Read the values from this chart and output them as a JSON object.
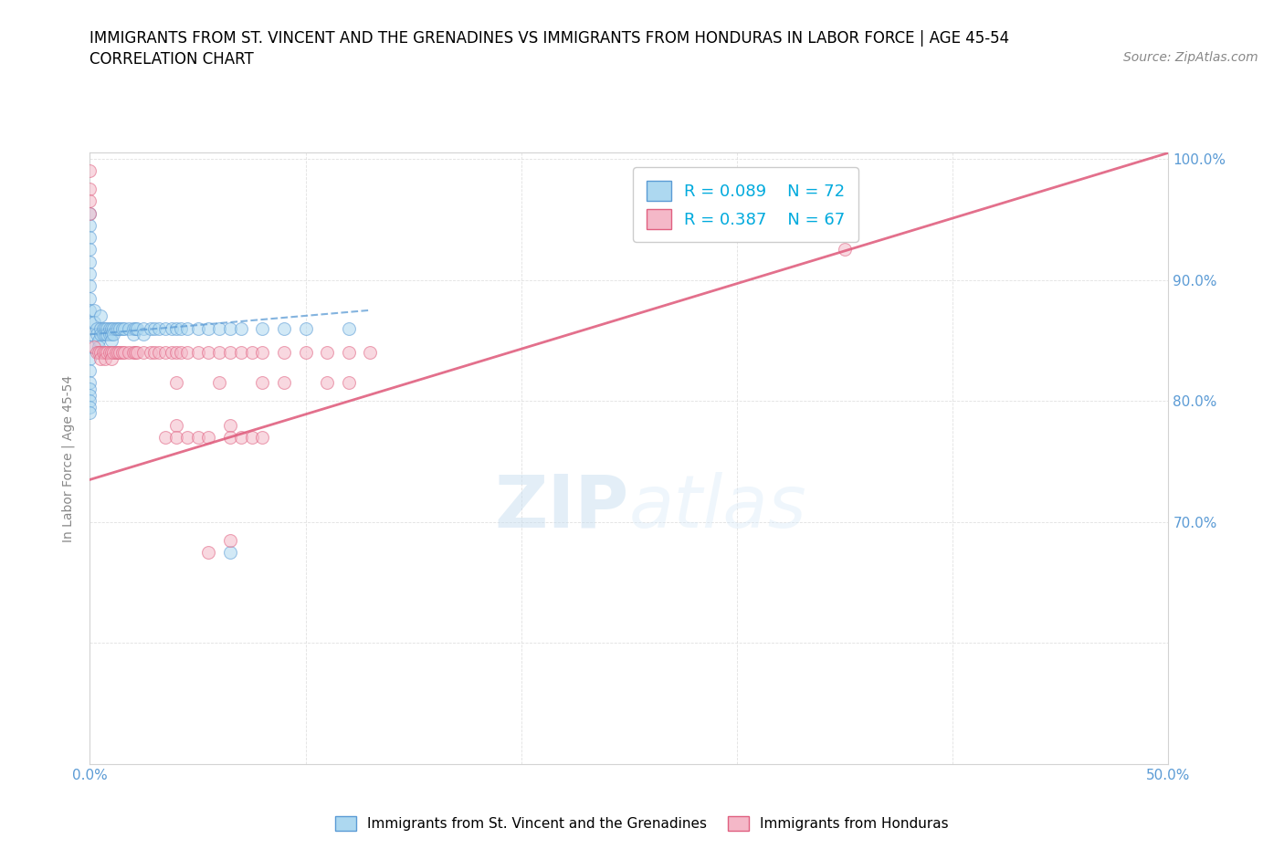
{
  "title_line1": "IMMIGRANTS FROM ST. VINCENT AND THE GRENADINES VS IMMIGRANTS FROM HONDURAS IN LABOR FORCE | AGE 45-54",
  "title_line2": "CORRELATION CHART",
  "source": "Source: ZipAtlas.com",
  "ylabel": "In Labor Force | Age 45-54",
  "xlim": [
    0.0,
    0.5
  ],
  "ylim": [
    0.5,
    1.005
  ],
  "xticks": [
    0.0,
    0.1,
    0.2,
    0.3,
    0.4,
    0.5
  ],
  "yticks": [
    0.6,
    0.7,
    0.8,
    0.9,
    1.0
  ],
  "xtick_labels": [
    "0.0%",
    "",
    "",
    "",
    "",
    "50.0%"
  ],
  "ytick_labels_right": [
    "",
    "70.0%",
    "80.0%",
    "90.0%",
    "100.0%"
  ],
  "legend_label1": "Immigrants from St. Vincent and the Grenadines",
  "legend_label2": "Immigrants from Honduras",
  "R1": 0.089,
  "N1": 72,
  "R2": 0.387,
  "N2": 67,
  "color1": "#add8f0",
  "color2": "#f4b8c8",
  "line_color1": "#5b9bd5",
  "line_color2": "#e06080",
  "tick_color": "#5b9bd5",
  "watermark_zip": "ZIP",
  "watermark_atlas": "atlas",
  "title_fontsize": 12,
  "subtitle_fontsize": 12,
  "source_fontsize": 10,
  "axis_label_fontsize": 10,
  "tick_fontsize": 11,
  "scatter_alpha": 0.55,
  "scatter_size": 100,
  "blue_x": [
    0.0,
    0.0,
    0.0,
    0.0,
    0.0,
    0.0,
    0.0,
    0.0,
    0.0,
    0.0,
    0.0,
    0.0,
    0.0,
    0.0,
    0.0,
    0.0,
    0.0,
    0.0,
    0.0,
    0.0,
    0.002,
    0.002,
    0.003,
    0.003,
    0.004,
    0.004,
    0.005,
    0.005,
    0.005,
    0.006,
    0.006,
    0.007,
    0.007,
    0.008,
    0.008,
    0.009,
    0.009,
    0.01,
    0.01,
    0.01,
    0.011,
    0.011,
    0.012,
    0.013,
    0.014,
    0.015,
    0.016,
    0.018,
    0.02,
    0.02,
    0.021,
    0.022,
    0.025,
    0.025,
    0.028,
    0.03,
    0.032,
    0.035,
    0.038,
    0.04,
    0.042,
    0.045,
    0.05,
    0.055,
    0.06,
    0.065,
    0.07,
    0.08,
    0.09,
    0.1,
    0.12,
    0.065
  ],
  "blue_y": [
    0.955,
    0.945,
    0.935,
    0.925,
    0.915,
    0.905,
    0.895,
    0.885,
    0.875,
    0.865,
    0.855,
    0.845,
    0.835,
    0.825,
    0.815,
    0.81,
    0.805,
    0.8,
    0.795,
    0.79,
    0.875,
    0.865,
    0.86,
    0.855,
    0.85,
    0.845,
    0.87,
    0.86,
    0.855,
    0.86,
    0.855,
    0.86,
    0.855,
    0.86,
    0.855,
    0.86,
    0.855,
    0.86,
    0.855,
    0.85,
    0.86,
    0.855,
    0.86,
    0.86,
    0.86,
    0.86,
    0.86,
    0.86,
    0.86,
    0.855,
    0.86,
    0.86,
    0.86,
    0.855,
    0.86,
    0.86,
    0.86,
    0.86,
    0.86,
    0.86,
    0.86,
    0.86,
    0.86,
    0.86,
    0.86,
    0.86,
    0.86,
    0.86,
    0.86,
    0.86,
    0.86,
    0.675
  ],
  "pink_x": [
    0.0,
    0.0,
    0.0,
    0.0,
    0.002,
    0.003,
    0.004,
    0.005,
    0.005,
    0.006,
    0.007,
    0.007,
    0.008,
    0.009,
    0.01,
    0.01,
    0.011,
    0.012,
    0.013,
    0.014,
    0.015,
    0.016,
    0.018,
    0.02,
    0.021,
    0.022,
    0.025,
    0.028,
    0.03,
    0.032,
    0.035,
    0.038,
    0.04,
    0.042,
    0.045,
    0.05,
    0.055,
    0.06,
    0.065,
    0.07,
    0.075,
    0.08,
    0.09,
    0.1,
    0.11,
    0.12,
    0.13,
    0.04,
    0.06,
    0.08,
    0.09,
    0.11,
    0.12,
    0.04,
    0.065,
    0.035,
    0.04,
    0.045,
    0.05,
    0.055,
    0.065,
    0.07,
    0.075,
    0.08,
    0.35,
    0.065,
    0.055
  ],
  "pink_y": [
    0.99,
    0.975,
    0.965,
    0.955,
    0.845,
    0.84,
    0.84,
    0.84,
    0.835,
    0.84,
    0.84,
    0.835,
    0.84,
    0.84,
    0.84,
    0.835,
    0.84,
    0.84,
    0.84,
    0.84,
    0.84,
    0.84,
    0.84,
    0.84,
    0.84,
    0.84,
    0.84,
    0.84,
    0.84,
    0.84,
    0.84,
    0.84,
    0.84,
    0.84,
    0.84,
    0.84,
    0.84,
    0.84,
    0.84,
    0.84,
    0.84,
    0.84,
    0.84,
    0.84,
    0.84,
    0.84,
    0.84,
    0.815,
    0.815,
    0.815,
    0.815,
    0.815,
    0.815,
    0.78,
    0.78,
    0.77,
    0.77,
    0.77,
    0.77,
    0.77,
    0.77,
    0.77,
    0.77,
    0.77,
    0.925,
    0.685,
    0.675
  ],
  "blue_line_x": [
    0.0,
    0.13
  ],
  "blue_line_y": [
    0.855,
    0.875
  ],
  "pink_line_x": [
    0.0,
    0.5
  ],
  "pink_line_y": [
    0.735,
    1.005
  ]
}
